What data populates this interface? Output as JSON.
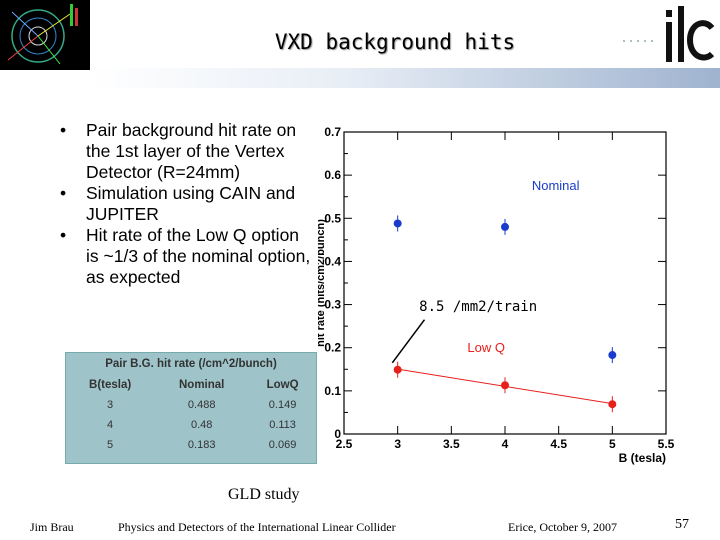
{
  "slide": {
    "title": "VXD background hits",
    "bullets": [
      "Pair background hit rate on the 1st layer of the Vertex Detector (R=24mm)",
      "Simulation using CAIN and JUPITER",
      "Hit rate of the Low Q option is ~1/3 of the nominal option, as expected"
    ],
    "table": {
      "caption": "Pair B.G. hit rate (/cm^2/bunch)",
      "headers": [
        "B(tesla)",
        "Nominal",
        "LowQ"
      ],
      "rows": [
        [
          "3",
          "0.488",
          "0.149"
        ],
        [
          "4",
          "0.48",
          "0.113"
        ],
        [
          "5",
          "0.183",
          "0.069"
        ]
      ]
    },
    "annotation": "8.5 /mm2/train",
    "study_label": "GLD study",
    "footer": {
      "author": "Jim Brau",
      "title": "Physics and Detectors of the International Linear Collider",
      "date": "Erice, October 9, 2007",
      "page": "57"
    }
  },
  "chart_data": {
    "type": "scatter",
    "xlabel": "B (tesla)",
    "ylabel": "hit rate (hits/cm2/bunch)",
    "xlim": [
      2.5,
      5.5
    ],
    "ylim": [
      0,
      0.7
    ],
    "xticks": [
      "2.5",
      "3",
      "3.5",
      "4",
      "4.5",
      "5",
      "5.5"
    ],
    "yticks": [
      "0",
      "0.1",
      "0.2",
      "0.3",
      "0.4",
      "0.5",
      "0.6",
      "0.7"
    ],
    "series": [
      {
        "name": "Nominal",
        "x": [
          3,
          4,
          5
        ],
        "y": [
          0.488,
          0.48,
          0.183
        ],
        "color": "#1a3ccc"
      },
      {
        "name": "Low Q",
        "x": [
          3,
          4,
          5
        ],
        "y": [
          0.149,
          0.113,
          0.069
        ],
        "color": "#e8201c"
      }
    ],
    "colors": {
      "nominal": "#1a3ccc",
      "lowq": "#e8201c",
      "fit_line": "#e8201c"
    }
  }
}
